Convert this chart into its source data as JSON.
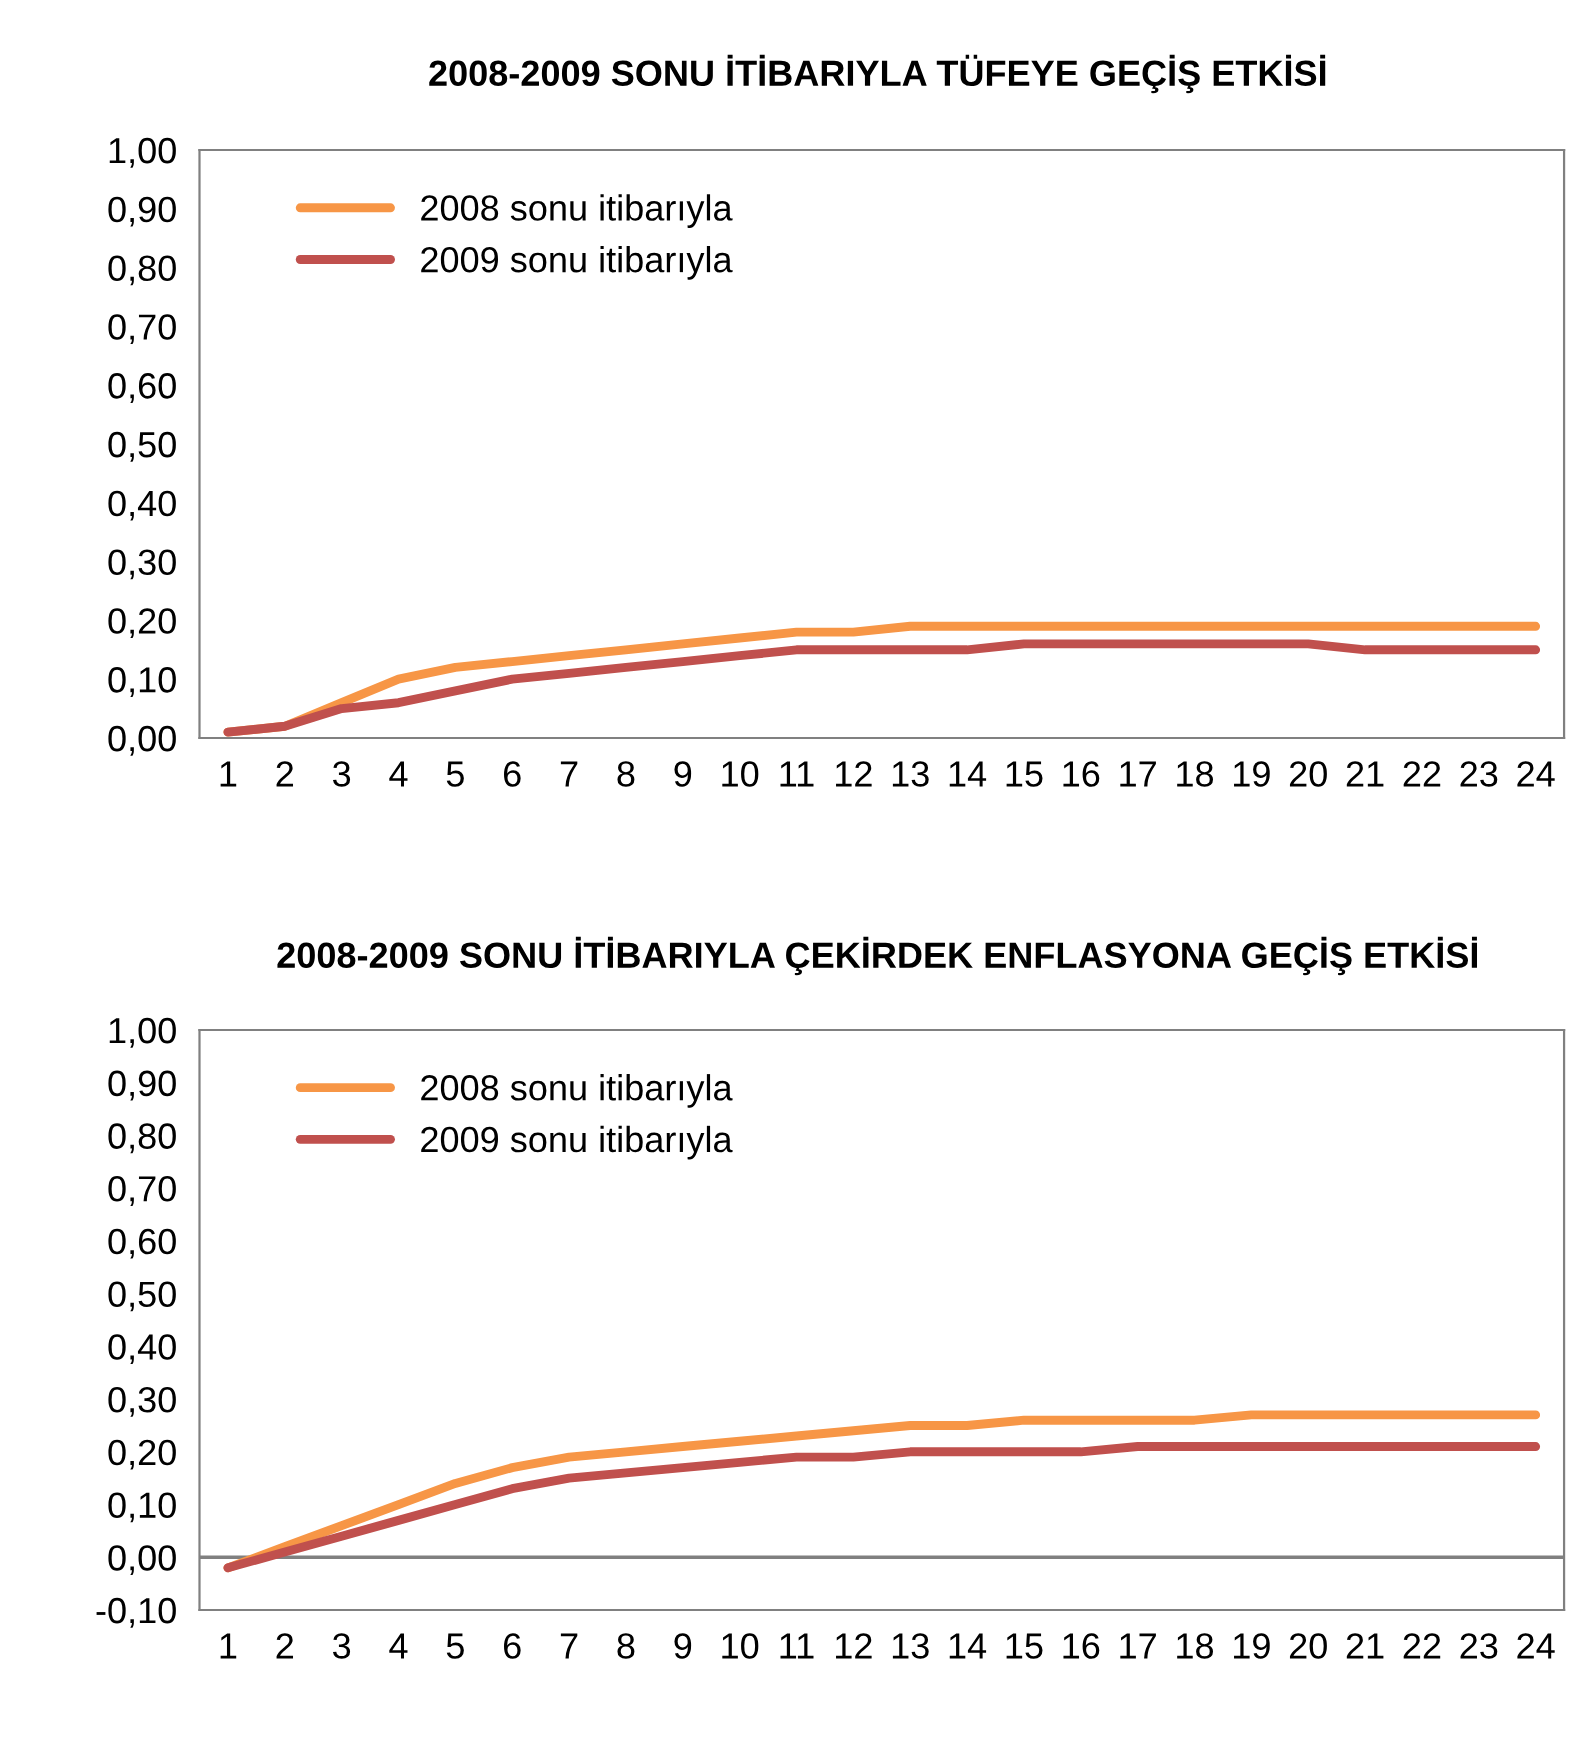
{
  "chart_data": [
    {
      "type": "line",
      "title": "2008-2009 SONU İTİBARIYLA TÜFEYE GEÇİŞ ETKİSİ",
      "categories": [
        "1",
        "2",
        "3",
        "4",
        "5",
        "6",
        "7",
        "8",
        "9",
        "10",
        "11",
        "12",
        "13",
        "14",
        "15",
        "16",
        "17",
        "18",
        "19",
        "20",
        "21",
        "22",
        "23",
        "24"
      ],
      "series": [
        {
          "name": "2008 sonu itibarıyla",
          "color": "#f79646",
          "values": [
            0.01,
            0.02,
            0.06,
            0.1,
            0.12,
            0.13,
            0.14,
            0.15,
            0.16,
            0.17,
            0.18,
            0.18,
            0.19,
            0.19,
            0.19,
            0.19,
            0.19,
            0.19,
            0.19,
            0.19,
            0.19,
            0.19,
            0.19,
            0.19
          ]
        },
        {
          "name": "2009 sonu itibarıyla",
          "color": "#c0504d",
          "values": [
            0.01,
            0.02,
            0.05,
            0.06,
            0.08,
            0.1,
            0.11,
            0.12,
            0.13,
            0.14,
            0.15,
            0.15,
            0.15,
            0.15,
            0.16,
            0.16,
            0.16,
            0.16,
            0.16,
            0.16,
            0.15,
            0.15,
            0.15,
            0.15
          ]
        }
      ],
      "ylim": [
        0,
        1
      ],
      "yticks": [
        {
          "value": 0,
          "label": "0,00"
        },
        {
          "value": 0.1,
          "label": "0,10"
        },
        {
          "value": 0.2,
          "label": "0,20"
        },
        {
          "value": 0.3,
          "label": "0,30"
        },
        {
          "value": 0.4,
          "label": "0,40"
        },
        {
          "value": 0.5,
          "label": "0,50"
        },
        {
          "value": 0.6,
          "label": "0,60"
        },
        {
          "value": 0.7,
          "label": "0,70"
        },
        {
          "value": 0.8,
          "label": "0,80"
        },
        {
          "value": 0.9,
          "label": "0,90"
        },
        {
          "value": 1,
          "label": "1,00"
        }
      ],
      "grid": false,
      "legend": "top left",
      "marker": "none",
      "line_style": "solid"
    },
    {
      "type": "line",
      "title": "2008-2009 SONU İTİBARIYLA ÇEKİRDEK ENFLASYONA GEÇİŞ ETKİSİ",
      "categories": [
        "1",
        "2",
        "3",
        "4",
        "5",
        "6",
        "7",
        "8",
        "9",
        "10",
        "11",
        "12",
        "13",
        "14",
        "15",
        "16",
        "17",
        "18",
        "19",
        "20",
        "21",
        "22",
        "23",
        "24"
      ],
      "series": [
        {
          "name": "2008 sonu itibarıyla",
          "color": "#f79646",
          "values": [
            -0.02,
            0.02,
            0.06,
            0.1,
            0.14,
            0.17,
            0.19,
            0.2,
            0.21,
            0.22,
            0.23,
            0.24,
            0.25,
            0.25,
            0.26,
            0.26,
            0.26,
            0.26,
            0.27,
            0.27,
            0.27,
            0.27,
            0.27,
            0.27
          ]
        },
        {
          "name": "2009 sonu itibarıyla",
          "color": "#c0504d",
          "values": [
            -0.02,
            0.01,
            0.04,
            0.07,
            0.1,
            0.13,
            0.15,
            0.16,
            0.17,
            0.18,
            0.19,
            0.19,
            0.2,
            0.2,
            0.2,
            0.2,
            0.21,
            0.21,
            0.21,
            0.21,
            0.21,
            0.21,
            0.21,
            0.21
          ]
        }
      ],
      "ylim": [
        -0.1,
        1
      ],
      "yticks": [
        {
          "value": -0.1,
          "label": "-0,10"
        },
        {
          "value": 0,
          "label": "0,00"
        },
        {
          "value": 0.1,
          "label": "0,10"
        },
        {
          "value": 0.2,
          "label": "0,20"
        },
        {
          "value": 0.3,
          "label": "0,30"
        },
        {
          "value": 0.4,
          "label": "0,40"
        },
        {
          "value": 0.5,
          "label": "0,50"
        },
        {
          "value": 0.6,
          "label": "0,60"
        },
        {
          "value": 0.7,
          "label": "0,70"
        },
        {
          "value": 0.8,
          "label": "0,80"
        },
        {
          "value": 0.9,
          "label": "0,90"
        },
        {
          "value": 1,
          "label": "1,00"
        }
      ],
      "ref_lines": [
        {
          "axis": "y",
          "value": 0,
          "color": "#808080"
        }
      ],
      "grid": false,
      "legend": "top left",
      "marker": "none",
      "line_style": "solid"
    }
  ]
}
